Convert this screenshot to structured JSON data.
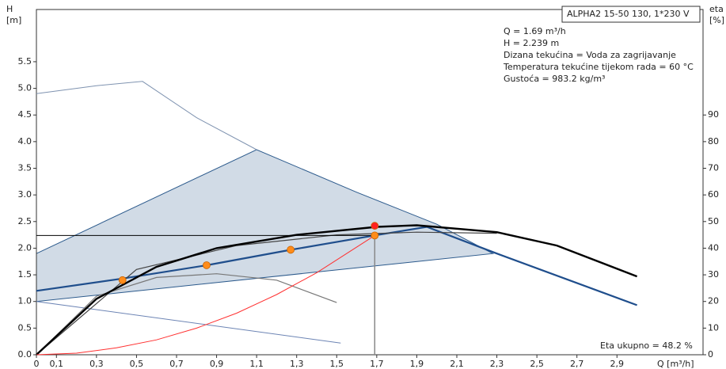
{
  "chart_data": {
    "type": "line",
    "box_title": "ALPHA2 15-50 130, 1*230 V",
    "info": [
      "Q = 1.69 m³/h",
      "H = 2.239 m",
      "Dizana tekućina = Voda za zagrijavanje",
      "Temperatura tekućine tijekom rada = 60 °C",
      "Gustoća = 983.2 kg/m³"
    ],
    "efficiency_note": "Eta ukupno = 48.2 %",
    "y_label": "H",
    "y_unit": "[m]",
    "y2_label": "eta",
    "y2_unit": "[%]",
    "x_label": "Q [m³/h]",
    "xlim": [
      0,
      3.33
    ],
    "ylim": [
      0,
      6.48
    ],
    "y2lim": [
      0,
      129.6
    ],
    "xticks": [
      0,
      {
        "value": 0.1,
        "label": "0,1"
      },
      {
        "value": 0.3,
        "label": "0,3"
      },
      {
        "value": 0.5,
        "label": "0,5"
      },
      {
        "value": 0.7,
        "label": "0,7"
      },
      {
        "value": 0.9,
        "label": "0,9"
      },
      {
        "value": 1.1,
        "label": "1,1"
      },
      {
        "value": 1.3,
        "label": "1,3"
      },
      {
        "value": 1.5,
        "label": "1,5"
      },
      {
        "value": 1.7,
        "label": "1,7"
      },
      {
        "value": 1.9,
        "label": "1,9"
      },
      {
        "value": 2.1,
        "label": "2,1"
      },
      {
        "value": 2.3,
        "label": "2,3"
      },
      {
        "value": 2.5,
        "label": "2,5"
      },
      {
        "value": 2.7,
        "label": "2,7"
      },
      {
        "value": 2.9,
        "label": "2,9"
      }
    ],
    "yticks": [
      {
        "value": 0,
        "label": "0.0"
      },
      0.5,
      {
        "value": 1,
        "label": "1.0"
      },
      1.5,
      {
        "value": 2,
        "label": "2.0"
      },
      2.5,
      {
        "value": 3,
        "label": "3.0"
      },
      3.5,
      {
        "value": 4,
        "label": "4.0"
      },
      4.5,
      {
        "value": 5,
        "label": "5.0"
      },
      5.5
    ],
    "y2ticks": [
      0,
      10,
      20,
      30,
      40,
      50,
      60,
      70,
      80,
      90
    ],
    "series": [
      {
        "kind": "area",
        "color": "#2c5a8c",
        "x": [
          0,
          1.1,
          1.6,
          2.0,
          2.28,
          0
        ],
        "values": [
          1.9,
          3.85,
          3.05,
          2.45,
          1.9,
          1.0
        ]
      },
      {
        "kind": "line",
        "color": "#7f93b0",
        "x": [
          0,
          0.3,
          0.53,
          0.8,
          1.1
        ],
        "values": [
          4.9,
          5.05,
          5.13,
          4.45,
          3.85
        ]
      },
      {
        "kind": "line",
        "color": "#6c84b4",
        "x": [
          0,
          1.52
        ],
        "values": [
          1.0,
          0.22
        ]
      },
      {
        "kind": "line",
        "color": "#1f4e8c",
        "x": [
          0,
          0.43,
          0.85,
          1.27,
          1.69,
          1.95,
          2.3,
          3.0
        ],
        "values": [
          1.2,
          1.43,
          1.68,
          1.97,
          2.24,
          2.4,
          1.9,
          0.93
        ]
      },
      {
        "kind": "line",
        "color": "#777777",
        "x": [
          0,
          0.3,
          0.6,
          0.9,
          1.2,
          1.5
        ],
        "values": [
          0,
          1.1,
          1.45,
          1.52,
          1.4,
          0.98
        ]
      },
      {
        "kind": "line",
        "color": "#444444",
        "x": [
          0,
          0.5,
          1.0,
          1.5,
          1.9,
          2.3
        ],
        "values": [
          0,
          1.6,
          2.05,
          2.25,
          2.3,
          2.28
        ]
      },
      {
        "kind": "line",
        "color": "#000000",
        "x": [
          0,
          0.3,
          0.6,
          0.9,
          1.3,
          1.7,
          1.9,
          2.3,
          2.6,
          3.0
        ],
        "values": [
          0,
          1.05,
          1.65,
          2.0,
          2.25,
          2.4,
          2.43,
          2.3,
          2.05,
          1.47
        ]
      },
      {
        "kind": "line",
        "color": "#ff3030",
        "x": [
          0,
          0.2,
          0.4,
          0.6,
          0.8,
          1.0,
          1.2,
          1.4,
          1.69
        ],
        "values": [
          0,
          0.03,
          0.13,
          0.28,
          0.5,
          0.78,
          1.13,
          1.54,
          2.239
        ]
      },
      {
        "kind": "line",
        "color": "#000000",
        "x": [
          0,
          1.69
        ],
        "values": [
          2.239,
          2.239
        ]
      },
      {
        "kind": "line",
        "color": "#888888",
        "x": [
          1.69,
          1.69
        ],
        "values": [
          0,
          2.239
        ]
      },
      {
        "kind": "points",
        "color": "#ff8c1a",
        "x": [
          0.43,
          0.85,
          1.27,
          1.69
        ],
        "values": [
          1.4,
          1.68,
          1.97,
          2.239
        ]
      },
      {
        "kind": "points",
        "color": "#ff2020",
        "x": [
          1.69
        ],
        "values": [
          2.42
        ]
      }
    ]
  }
}
